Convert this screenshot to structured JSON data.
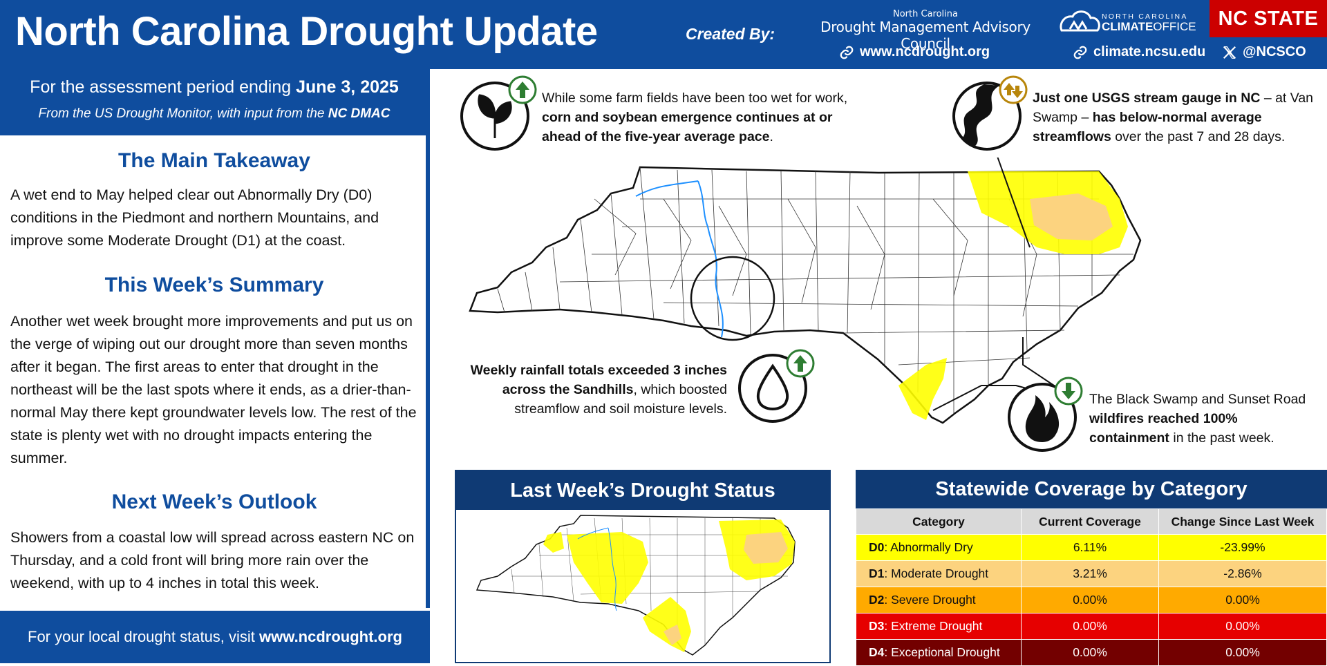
{
  "header": {
    "title": "North Carolina Drought Update",
    "created_by": "Created By:",
    "dmac_top": "North Carolina",
    "dmac_name": "Drought Management Advisory Council",
    "ncdrought_url": "www.ncdrought.org",
    "climate_url": "climate.ncsu.edu",
    "x_handle": "@NCSCO",
    "nco_line1": "NORTH CAROLINA",
    "nco_line2_a": "CLIMATE",
    "nco_line2_b": "OFFICE",
    "ncstate": "NC STATE",
    "brand_blue": "#0f4d9e",
    "ncstate_red": "#cc0000"
  },
  "assessment": {
    "prefix": "For the assessment period ending ",
    "date": "June 3, 2025",
    "sub_prefix": "From the US Drought Monitor, with input from the ",
    "sub_bold": "NC DMAC"
  },
  "sections": {
    "main_title": "The Main Takeaway",
    "main_text": "A wet end to May helped clear out Abnormally Dry (D0) conditions in the Piedmont and northern Mountains, and improve some Moderate Drought (D1) at the coast.",
    "summary_title": "This Week’s Summary",
    "summary_text": "Another wet week brought more improvements and put us on the verge of wiping out our drought more than seven months after it began. The first areas to enter that drought in the northeast will be the last spots where it ends, as a drier-than-normal May there kept groundwater levels low. The rest of the state is plenty wet with no drought impacts entering the summer.",
    "outlook_title": "Next Week’s Outlook",
    "outlook_text": "Showers from a coastal low will spread across eastern NC on Thursday, and a cold front will bring more rain over the weekend, with up to 4 inches in total this week."
  },
  "footer": {
    "prefix": "For your local drought status, visit ",
    "url": "www.ncdrought.org"
  },
  "callouts": {
    "farm": {
      "t1": "While some farm fields have been too wet for work, ",
      "b1": "corn and soybean emergence continues at or ahead of the five-year average pace",
      "t2": ".",
      "icon": "plant-icon",
      "trend": "up"
    },
    "stream": {
      "b1": "Just one USGS stream gauge in NC",
      "t1": " – at Van Swamp – ",
      "b2": "has below-normal average streamflows",
      "t2": " over the past 7 and 28 days.",
      "icon": "river-icon",
      "trend": "up-down"
    },
    "rain": {
      "b1": "Weekly rainfall totals exceeded 3 inches across the Sandhills",
      "t1": ", which boosted streamflow and soil moisture levels.",
      "icon": "raindrop-icon",
      "trend": "up"
    },
    "fire": {
      "t1": "The Black Swamp and Sunset Road ",
      "b1": "wildfires reached 100% containment",
      "t2": " in the past week.",
      "icon": "fire-icon",
      "trend": "down"
    }
  },
  "panels": {
    "last_week_title": "Last Week’s Drought Status",
    "coverage_title": "Statewide Coverage by Category",
    "table_headers": [
      "Category",
      "Current Coverage",
      "Change Since Last Week"
    ],
    "rows": [
      {
        "code": "D0",
        "name": ": Abnormally Dry",
        "current": "6.11%",
        "change": "-23.99%",
        "bg": "#ffff00",
        "fg": "#111111"
      },
      {
        "code": "D1",
        "name": ": Moderate Drought",
        "current": "3.21%",
        "change": "-2.86%",
        "bg": "#fcd37f",
        "fg": "#111111"
      },
      {
        "code": "D2",
        "name": ": Severe Drought",
        "current": "0.00%",
        "change": "0.00%",
        "bg": "#ffaa00",
        "fg": "#111111"
      },
      {
        "code": "D3",
        "name": ": Extreme Drought",
        "current": "0.00%",
        "change": "0.00%",
        "bg": "#e60000",
        "fg": "#ffffff"
      },
      {
        "code": "D4",
        "name": ": Exceptional Drought",
        "current": "0.00%",
        "change": "0.00%",
        "bg": "#730000",
        "fg": "#ffffff"
      }
    ]
  }
}
